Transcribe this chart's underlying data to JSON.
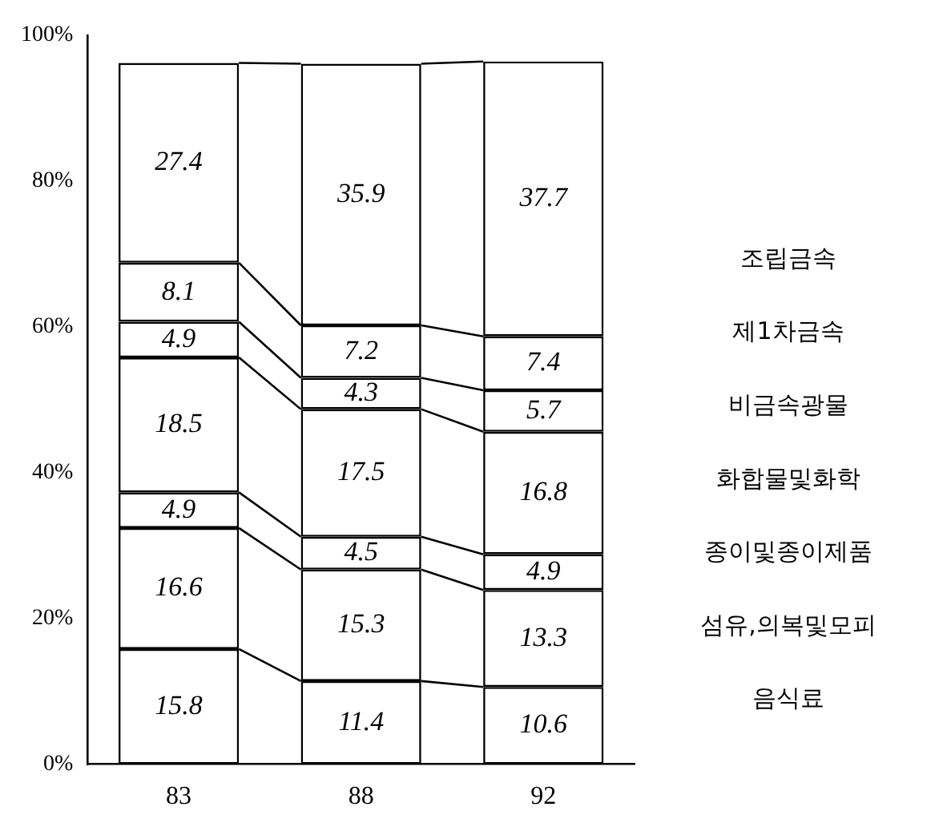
{
  "chart_data": {
    "type": "bar",
    "stacked": true,
    "categories": [
      "83",
      "88",
      "92"
    ],
    "series": [
      {
        "name": "음식료",
        "color": "#ffffff",
        "values": [
          15.8,
          11.4,
          10.6
        ]
      },
      {
        "name": "섬유,의복및모피",
        "color": "#ffffff",
        "values": [
          16.6,
          15.3,
          13.3
        ]
      },
      {
        "name": "종이및종이제품",
        "color": "#ffffff",
        "values": [
          4.9,
          4.5,
          4.9
        ]
      },
      {
        "name": "화합물및화학",
        "color": "#ffffff",
        "values": [
          18.5,
          17.5,
          16.8
        ]
      },
      {
        "name": "비금속광물",
        "color": "#ffffff",
        "values": [
          4.9,
          4.3,
          5.7
        ]
      },
      {
        "name": "제1차금속",
        "color": "#ffffff",
        "values": [
          8.1,
          7.2,
          7.4
        ]
      },
      {
        "name": "조립금속",
        "color": "#ffffff",
        "values": [
          27.4,
          35.9,
          37.7
        ]
      }
    ],
    "ylim": [
      0,
      100
    ],
    "yticks": [
      {
        "value": 0,
        "label": "0%"
      },
      {
        "value": 20,
        "label": "20%"
      },
      {
        "value": 40,
        "label": "40%"
      },
      {
        "value": 60,
        "label": "60%"
      },
      {
        "value": 80,
        "label": "80%"
      },
      {
        "value": 100,
        "label": "100%"
      }
    ],
    "grid": false,
    "legend": "right",
    "data_labels": true
  }
}
